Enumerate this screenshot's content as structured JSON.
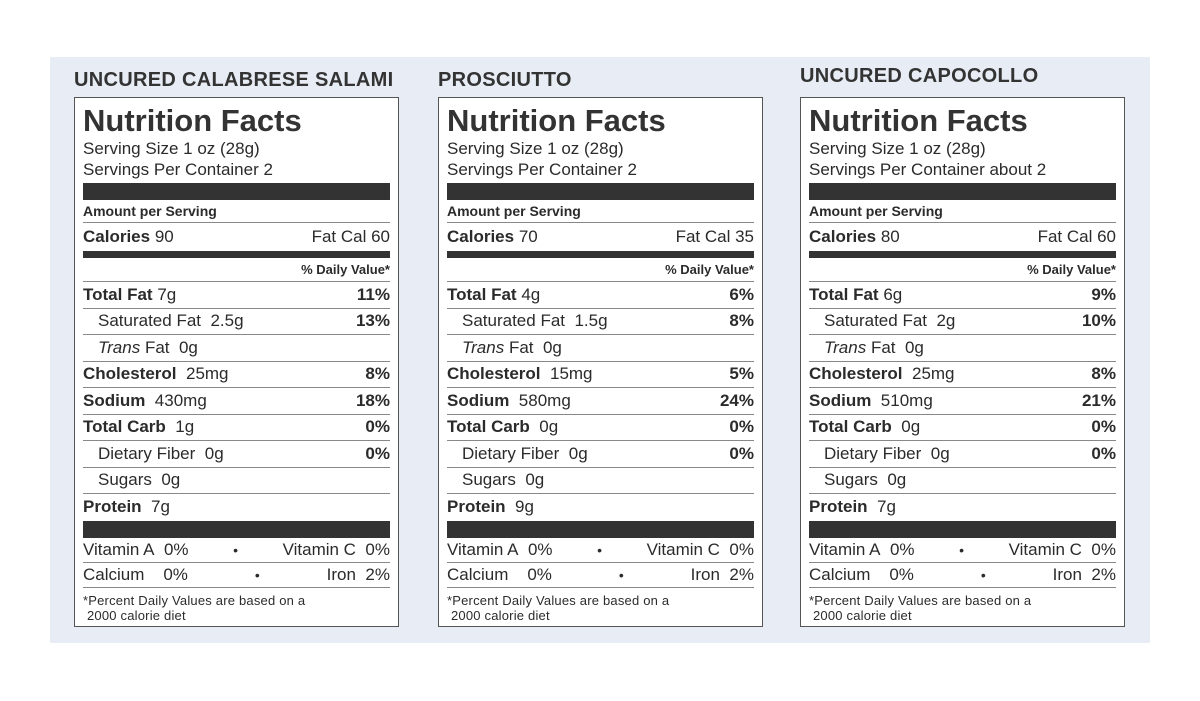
{
  "panels": [
    {
      "product": "UNCURED CALABRESE SALAMI",
      "title": "Nutrition Facts",
      "serving_size": "Serving Size 1 oz (28g)",
      "servings_per_container": "Servings Per Container 2",
      "amount_per_serving": "Amount per Serving",
      "calories_label": "Calories",
      "calories": "90",
      "fat_cal": "Fat Cal 60",
      "dv_header": "% Daily Value*",
      "total_fat_label": "Total Fat",
      "total_fat": "7g",
      "total_fat_dv": "11%",
      "sat_fat_label": "Saturated Fat",
      "sat_fat": "2.5g",
      "sat_fat_dv": "13%",
      "trans_label": "Trans",
      "trans_fat_label": "Fat",
      "trans_fat": "0g",
      "chol_label": "Cholesterol",
      "chol": "25mg",
      "chol_dv": "8%",
      "sodium_label": "Sodium",
      "sodium": "430mg",
      "sodium_dv": "18%",
      "carb_label": "Total Carb",
      "carb": "1g",
      "carb_dv": "0%",
      "fiber_label": "Dietary Fiber",
      "fiber": "0g",
      "fiber_dv": "0%",
      "sugars_label": "Sugars",
      "sugars": "0g",
      "protein_label": "Protein",
      "protein": "7g",
      "vit_a": "Vitamin A",
      "vit_a_val": "0%",
      "vit_c": "Vitamin C",
      "vit_c_val": "0%",
      "calcium": "Calcium",
      "calcium_val": "0%",
      "iron": "Iron",
      "iron_val": "2%",
      "bullet": "•",
      "footnote_1": "*Percent Daily Values are based on a",
      "footnote_2": "2000 calorie diet"
    },
    {
      "product": "PROSCIUTTO",
      "title": "Nutrition Facts",
      "serving_size": "Serving Size 1 oz (28g)",
      "servings_per_container": "Servings Per Container 2",
      "amount_per_serving": "Amount per Serving",
      "calories_label": "Calories",
      "calories": "70",
      "fat_cal": "Fat Cal 35",
      "dv_header": "% Daily Value*",
      "total_fat_label": "Total Fat",
      "total_fat": "4g",
      "total_fat_dv": "6%",
      "sat_fat_label": "Saturated Fat",
      "sat_fat": "1.5g",
      "sat_fat_dv": "8%",
      "trans_label": "Trans",
      "trans_fat_label": "Fat",
      "trans_fat": "0g",
      "chol_label": "Cholesterol",
      "chol": "15mg",
      "chol_dv": "5%",
      "sodium_label": "Sodium",
      "sodium": "580mg",
      "sodium_dv": "24%",
      "carb_label": "Total Carb",
      "carb": "0g",
      "carb_dv": "0%",
      "fiber_label": "Dietary Fiber",
      "fiber": "0g",
      "fiber_dv": "0%",
      "sugars_label": "Sugars",
      "sugars": "0g",
      "protein_label": "Protein",
      "protein": "9g",
      "vit_a": "Vitamin A",
      "vit_a_val": "0%",
      "vit_c": "Vitamin C",
      "vit_c_val": "0%",
      "calcium": "Calcium",
      "calcium_val": "0%",
      "iron": "Iron",
      "iron_val": "2%",
      "bullet": "•",
      "footnote_1": "*Percent Daily Values are based on a",
      "footnote_2": "2000 calorie diet"
    },
    {
      "product": "UNCURED CAPOCOLLO",
      "title": "Nutrition Facts",
      "serving_size": "Serving Size 1 oz (28g)",
      "servings_per_container": "Servings Per Container about 2",
      "amount_per_serving": "Amount per Serving",
      "calories_label": "Calories",
      "calories": "80",
      "fat_cal": "Fat Cal 60",
      "dv_header": "% Daily Value*",
      "total_fat_label": "Total Fat",
      "total_fat": "6g",
      "total_fat_dv": "9%",
      "sat_fat_label": "Saturated Fat",
      "sat_fat": "2g",
      "sat_fat_dv": "10%",
      "trans_label": "Trans",
      "trans_fat_label": "Fat",
      "trans_fat": "0g",
      "chol_label": "Cholesterol",
      "chol": "25mg",
      "chol_dv": "8%",
      "sodium_label": "Sodium",
      "sodium": "510mg",
      "sodium_dv": "21%",
      "carb_label": "Total Carb",
      "carb": "0g",
      "carb_dv": "0%",
      "fiber_label": "Dietary Fiber",
      "fiber": "0g",
      "fiber_dv": "0%",
      "sugars_label": "Sugars",
      "sugars": "0g",
      "protein_label": "Protein",
      "protein": "7g",
      "vit_a": "Vitamin A",
      "vit_a_val": "0%",
      "vit_c": "Vitamin C",
      "vit_c_val": "0%",
      "calcium": "Calcium",
      "calcium_val": "0%",
      "iron": "Iron",
      "iron_val": "2%",
      "bullet": "•",
      "footnote_1": "*Percent Daily Values are based on a",
      "footnote_2": "2000 calorie diet"
    }
  ]
}
